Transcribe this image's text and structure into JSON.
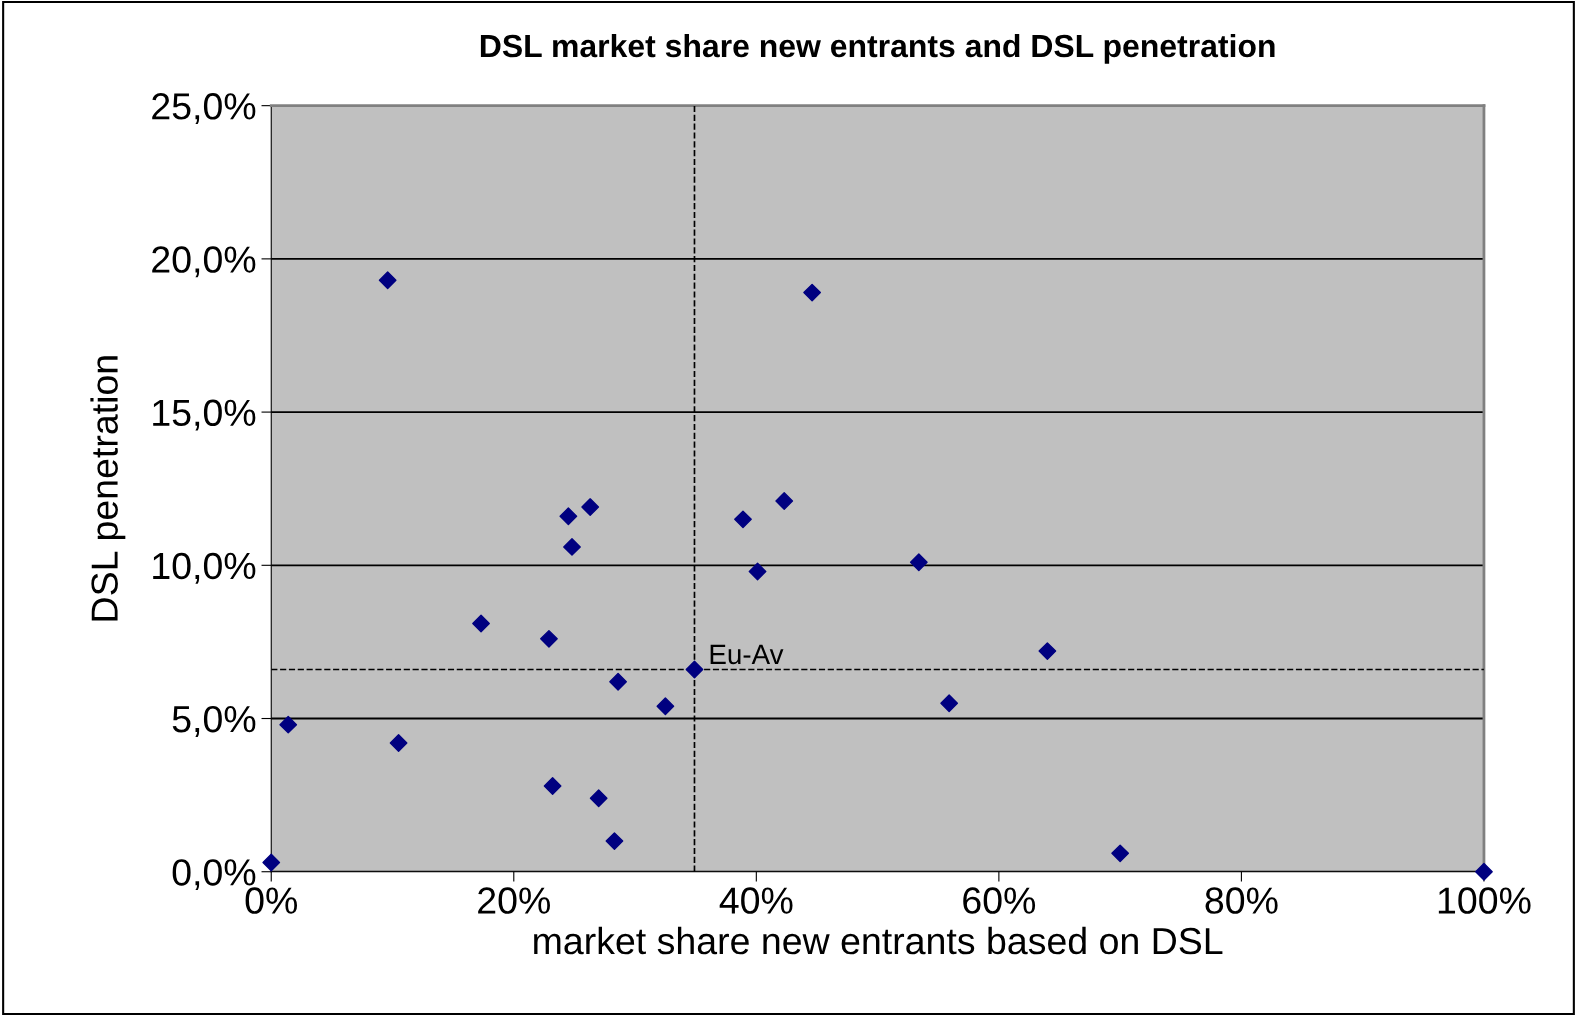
{
  "chart_data": {
    "type": "scatter",
    "title": "DSL market share new entrants and DSL penetration",
    "xlabel": "market share new entrants based on DSL",
    "ylabel": "DSL penetration",
    "x": [
      0,
      1.4,
      9.6,
      10.5,
      17.3,
      22.9,
      23.2,
      24.5,
      24.8,
      26.3,
      27.0,
      28.3,
      28.6,
      32.5,
      34.9,
      38.9,
      40.1,
      42.3,
      44.6,
      53.4,
      55.9,
      64.0,
      70.0,
      100
    ],
    "values": [
      0.3,
      4.8,
      19.3,
      4.2,
      8.1,
      7.6,
      2.8,
      11.6,
      10.6,
      11.9,
      2.4,
      1.0,
      6.2,
      5.4,
      6.6,
      11.5,
      9.8,
      12.1,
      18.9,
      10.1,
      5.5,
      7.2,
      0.6,
      0.0
    ],
    "color": "#000080",
    "marker": "diamond",
    "xlim": [
      0,
      100
    ],
    "ylim": [
      0,
      25
    ],
    "xticks": [
      {
        "value": 0,
        "label": "0%"
      },
      {
        "value": 20,
        "label": "20%"
      },
      {
        "value": 40,
        "label": "40%"
      },
      {
        "value": 60,
        "label": "60%"
      },
      {
        "value": 80,
        "label": "80%"
      },
      {
        "value": 100,
        "label": "100%"
      }
    ],
    "yticks": [
      {
        "value": 0,
        "label": "0,0%"
      },
      {
        "value": 5,
        "label": "5,0%"
      },
      {
        "value": 10,
        "label": "10,0%"
      },
      {
        "value": 15,
        "label": "15,0%"
      },
      {
        "value": 20,
        "label": "20,0%"
      },
      {
        "value": 25,
        "label": "25,0%"
      }
    ],
    "grid": "y",
    "ref_lines": [
      {
        "axis": "x",
        "value": 34.9,
        "line_style": "dashed",
        "color": "#000000"
      },
      {
        "axis": "y",
        "value": 6.6,
        "line_style": "dashed",
        "color": "#000000"
      }
    ],
    "annotations": [
      {
        "text": "Eu-Av",
        "x": 34.9,
        "y": 6.6
      }
    ]
  }
}
